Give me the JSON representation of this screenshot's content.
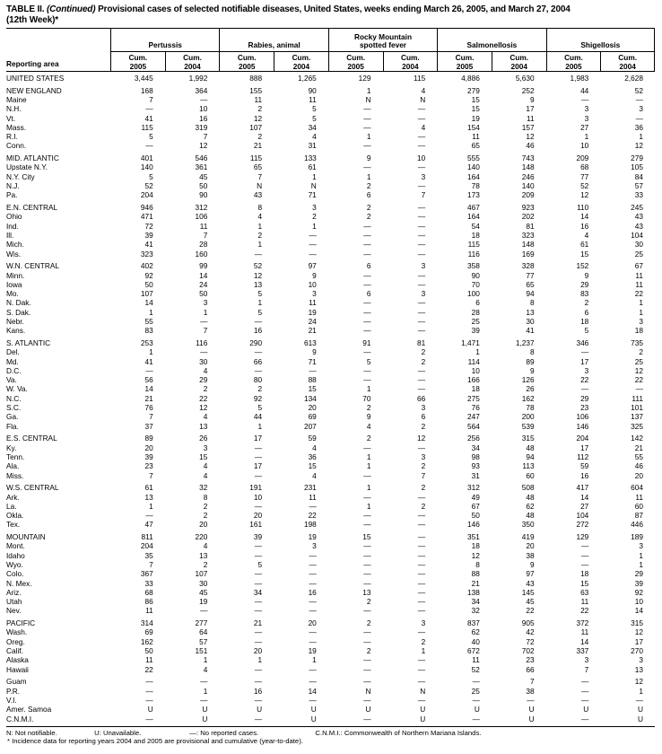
{
  "title": {
    "prefix": "TABLE II. ",
    "continued": "(Continued)",
    "rest": " Provisional cases of selected notifiable diseases, United States, weeks ending March 26, 2005, and March 27, 2004",
    "line2": "(12th Week)*"
  },
  "table": {
    "reporting_area_label": "Reporting area",
    "cum_label": "Cum.",
    "years": [
      "2005",
      "2004"
    ],
    "column_groups": [
      {
        "name": "Pertussis"
      },
      {
        "name": "Rabies, animal"
      },
      {
        "name": "Rocky Mountain\nspotted fever"
      },
      {
        "name": "Salmonellosis"
      },
      {
        "name": "Shigellosis"
      }
    ],
    "rows": [
      {
        "area": "UNITED STATES",
        "type": "us-total",
        "gap": false,
        "values": [
          "3,445",
          "1,992",
          "888",
          "1,265",
          "129",
          "115",
          "4,886",
          "5,630",
          "1,983",
          "2,628"
        ]
      },
      {
        "area": "NEW ENGLAND",
        "type": "region",
        "gap": true,
        "values": [
          "168",
          "364",
          "155",
          "90",
          "1",
          "4",
          "279",
          "252",
          "44",
          "52"
        ]
      },
      {
        "area": "Maine",
        "type": "state",
        "gap": false,
        "values": [
          "7",
          "—",
          "11",
          "11",
          "N",
          "N",
          "15",
          "9",
          "—",
          "—"
        ]
      },
      {
        "area": "N.H.",
        "type": "state",
        "gap": false,
        "values": [
          "—",
          "10",
          "2",
          "5",
          "—",
          "—",
          "15",
          "17",
          "3",
          "3"
        ]
      },
      {
        "area": "Vt.",
        "type": "state",
        "gap": false,
        "values": [
          "41",
          "16",
          "12",
          "5",
          "—",
          "—",
          "19",
          "11",
          "3",
          "—"
        ]
      },
      {
        "area": "Mass.",
        "type": "state",
        "gap": false,
        "values": [
          "115",
          "319",
          "107",
          "34",
          "—",
          "4",
          "154",
          "157",
          "27",
          "36"
        ]
      },
      {
        "area": "R.I.",
        "type": "state",
        "gap": false,
        "values": [
          "5",
          "7",
          "2",
          "4",
          "1",
          "—",
          "11",
          "12",
          "1",
          "1"
        ]
      },
      {
        "area": "Conn.",
        "type": "state",
        "gap": false,
        "values": [
          "—",
          "12",
          "21",
          "31",
          "—",
          "—",
          "65",
          "46",
          "10",
          "12"
        ]
      },
      {
        "area": "MID. ATLANTIC",
        "type": "region",
        "gap": true,
        "values": [
          "401",
          "546",
          "115",
          "133",
          "9",
          "10",
          "555",
          "743",
          "209",
          "279"
        ]
      },
      {
        "area": "Upstate N.Y.",
        "type": "state",
        "gap": false,
        "values": [
          "140",
          "361",
          "65",
          "61",
          "—",
          "—",
          "140",
          "148",
          "68",
          "105"
        ]
      },
      {
        "area": "N.Y. City",
        "type": "state",
        "gap": false,
        "values": [
          "5",
          "45",
          "7",
          "1",
          "1",
          "3",
          "164",
          "246",
          "77",
          "84"
        ]
      },
      {
        "area": "N.J.",
        "type": "state",
        "gap": false,
        "values": [
          "52",
          "50",
          "N",
          "N",
          "2",
          "—",
          "78",
          "140",
          "52",
          "57"
        ]
      },
      {
        "area": "Pa.",
        "type": "state",
        "gap": false,
        "values": [
          "204",
          "90",
          "43",
          "71",
          "6",
          "7",
          "173",
          "209",
          "12",
          "33"
        ]
      },
      {
        "area": "E.N. CENTRAL",
        "type": "region",
        "gap": true,
        "values": [
          "946",
          "312",
          "8",
          "3",
          "2",
          "—",
          "467",
          "923",
          "110",
          "245"
        ]
      },
      {
        "area": "Ohio",
        "type": "state",
        "gap": false,
        "values": [
          "471",
          "106",
          "4",
          "2",
          "2",
          "—",
          "164",
          "202",
          "14",
          "43"
        ]
      },
      {
        "area": "Ind.",
        "type": "state",
        "gap": false,
        "values": [
          "72",
          "11",
          "1",
          "1",
          "—",
          "—",
          "54",
          "81",
          "16",
          "43"
        ]
      },
      {
        "area": "Ill.",
        "type": "state",
        "gap": false,
        "values": [
          "39",
          "7",
          "2",
          "—",
          "—",
          "—",
          "18",
          "323",
          "4",
          "104"
        ]
      },
      {
        "area": "Mich.",
        "type": "state",
        "gap": false,
        "values": [
          "41",
          "28",
          "1",
          "—",
          "—",
          "—",
          "115",
          "148",
          "61",
          "30"
        ]
      },
      {
        "area": "Wis.",
        "type": "state",
        "gap": false,
        "values": [
          "323",
          "160",
          "—",
          "—",
          "—",
          "—",
          "116",
          "169",
          "15",
          "25"
        ]
      },
      {
        "area": "W.N. CENTRAL",
        "type": "region",
        "gap": true,
        "values": [
          "402",
          "99",
          "52",
          "97",
          "6",
          "3",
          "358",
          "328",
          "152",
          "67"
        ]
      },
      {
        "area": "Minn.",
        "type": "state",
        "gap": false,
        "values": [
          "92",
          "14",
          "12",
          "9",
          "—",
          "—",
          "90",
          "77",
          "9",
          "11"
        ]
      },
      {
        "area": "Iowa",
        "type": "state",
        "gap": false,
        "values": [
          "50",
          "24",
          "13",
          "10",
          "—",
          "—",
          "70",
          "65",
          "29",
          "11"
        ]
      },
      {
        "area": "Mo.",
        "type": "state",
        "gap": false,
        "values": [
          "107",
          "50",
          "5",
          "3",
          "6",
          "3",
          "100",
          "94",
          "83",
          "22"
        ]
      },
      {
        "area": "N. Dak.",
        "type": "state",
        "gap": false,
        "values": [
          "14",
          "3",
          "1",
          "11",
          "—",
          "—",
          "6",
          "8",
          "2",
          "1"
        ]
      },
      {
        "area": "S. Dak.",
        "type": "state",
        "gap": false,
        "values": [
          "1",
          "1",
          "5",
          "19",
          "—",
          "—",
          "28",
          "13",
          "6",
          "1"
        ]
      },
      {
        "area": "Nebr.",
        "type": "state",
        "gap": false,
        "values": [
          "55",
          "—",
          "—",
          "24",
          "—",
          "—",
          "25",
          "30",
          "18",
          "3"
        ]
      },
      {
        "area": "Kans.",
        "type": "state",
        "gap": false,
        "values": [
          "83",
          "7",
          "16",
          "21",
          "—",
          "—",
          "39",
          "41",
          "5",
          "18"
        ]
      },
      {
        "area": "S. ATLANTIC",
        "type": "region",
        "gap": true,
        "values": [
          "253",
          "116",
          "290",
          "613",
          "91",
          "81",
          "1,471",
          "1,237",
          "346",
          "735"
        ]
      },
      {
        "area": "Del.",
        "type": "state",
        "gap": false,
        "values": [
          "1",
          "—",
          "—",
          "9",
          "—",
          "2",
          "1",
          "8",
          "—",
          "2"
        ]
      },
      {
        "area": "Md.",
        "type": "state",
        "gap": false,
        "values": [
          "41",
          "30",
          "66",
          "71",
          "5",
          "2",
          "114",
          "89",
          "17",
          "25"
        ]
      },
      {
        "area": "D.C.",
        "type": "state",
        "gap": false,
        "values": [
          "—",
          "4",
          "—",
          "—",
          "—",
          "—",
          "10",
          "9",
          "3",
          "12"
        ]
      },
      {
        "area": "Va.",
        "type": "state",
        "gap": false,
        "values": [
          "56",
          "29",
          "80",
          "88",
          "—",
          "—",
          "166",
          "126",
          "22",
          "22"
        ]
      },
      {
        "area": "W. Va.",
        "type": "state",
        "gap": false,
        "values": [
          "14",
          "2",
          "2",
          "15",
          "1",
          "—",
          "18",
          "26",
          "—",
          "—"
        ]
      },
      {
        "area": "N.C.",
        "type": "state",
        "gap": false,
        "values": [
          "21",
          "22",
          "92",
          "134",
          "70",
          "66",
          "275",
          "162",
          "29",
          "111"
        ]
      },
      {
        "area": "S.C.",
        "type": "state",
        "gap": false,
        "values": [
          "76",
          "12",
          "5",
          "20",
          "2",
          "3",
          "76",
          "78",
          "23",
          "101"
        ]
      },
      {
        "area": "Ga.",
        "type": "state",
        "gap": false,
        "values": [
          "7",
          "4",
          "44",
          "69",
          "9",
          "6",
          "247",
          "200",
          "106",
          "137"
        ]
      },
      {
        "area": "Fla.",
        "type": "state",
        "gap": false,
        "values": [
          "37",
          "13",
          "1",
          "207",
          "4",
          "2",
          "564",
          "539",
          "146",
          "325"
        ]
      },
      {
        "area": "E.S. CENTRAL",
        "type": "region",
        "gap": true,
        "values": [
          "89",
          "26",
          "17",
          "59",
          "2",
          "12",
          "256",
          "315",
          "204",
          "142"
        ]
      },
      {
        "area": "Ky.",
        "type": "state",
        "gap": false,
        "values": [
          "20",
          "3",
          "—",
          "4",
          "—",
          "—",
          "34",
          "48",
          "17",
          "21"
        ]
      },
      {
        "area": "Tenn.",
        "type": "state",
        "gap": false,
        "values": [
          "39",
          "15",
          "—",
          "36",
          "1",
          "3",
          "98",
          "94",
          "112",
          "55"
        ]
      },
      {
        "area": "Ala.",
        "type": "state",
        "gap": false,
        "values": [
          "23",
          "4",
          "17",
          "15",
          "1",
          "2",
          "93",
          "113",
          "59",
          "46"
        ]
      },
      {
        "area": "Miss.",
        "type": "state",
        "gap": false,
        "values": [
          "7",
          "4",
          "—",
          "4",
          "—",
          "7",
          "31",
          "60",
          "16",
          "20"
        ]
      },
      {
        "area": "W.S. CENTRAL",
        "type": "region",
        "gap": true,
        "values": [
          "61",
          "32",
          "191",
          "231",
          "1",
          "2",
          "312",
          "508",
          "417",
          "604"
        ]
      },
      {
        "area": "Ark.",
        "type": "state",
        "gap": false,
        "values": [
          "13",
          "8",
          "10",
          "11",
          "—",
          "—",
          "49",
          "48",
          "14",
          "11"
        ]
      },
      {
        "area": "La.",
        "type": "state",
        "gap": false,
        "values": [
          "1",
          "2",
          "—",
          "—",
          "1",
          "2",
          "67",
          "62",
          "27",
          "60"
        ]
      },
      {
        "area": "Okla.",
        "type": "state",
        "gap": false,
        "values": [
          "—",
          "2",
          "20",
          "22",
          "—",
          "—",
          "50",
          "48",
          "104",
          "87"
        ]
      },
      {
        "area": "Tex.",
        "type": "state",
        "gap": false,
        "values": [
          "47",
          "20",
          "161",
          "198",
          "—",
          "—",
          "146",
          "350",
          "272",
          "446"
        ]
      },
      {
        "area": "MOUNTAIN",
        "type": "region",
        "gap": true,
        "values": [
          "811",
          "220",
          "39",
          "19",
          "15",
          "—",
          "351",
          "419",
          "129",
          "189"
        ]
      },
      {
        "area": "Mont.",
        "type": "state",
        "gap": false,
        "values": [
          "204",
          "4",
          "—",
          "3",
          "—",
          "—",
          "18",
          "20",
          "—",
          "3"
        ]
      },
      {
        "area": "Idaho",
        "type": "state",
        "gap": false,
        "values": [
          "35",
          "13",
          "—",
          "—",
          "—",
          "—",
          "12",
          "38",
          "—",
          "1"
        ]
      },
      {
        "area": "Wyo.",
        "type": "state",
        "gap": false,
        "values": [
          "7",
          "2",
          "5",
          "—",
          "—",
          "—",
          "8",
          "9",
          "—",
          "1"
        ]
      },
      {
        "area": "Colo.",
        "type": "state",
        "gap": false,
        "values": [
          "367",
          "107",
          "—",
          "—",
          "—",
          "—",
          "88",
          "97",
          "18",
          "29"
        ]
      },
      {
        "area": "N. Mex.",
        "type": "state",
        "gap": false,
        "values": [
          "33",
          "30",
          "—",
          "—",
          "—",
          "—",
          "21",
          "43",
          "15",
          "39"
        ]
      },
      {
        "area": "Ariz.",
        "type": "state",
        "gap": false,
        "values": [
          "68",
          "45",
          "34",
          "16",
          "13",
          "—",
          "138",
          "145",
          "63",
          "92"
        ]
      },
      {
        "area": "Utah",
        "type": "state",
        "gap": false,
        "values": [
          "86",
          "19",
          "—",
          "—",
          "2",
          "—",
          "34",
          "45",
          "11",
          "10"
        ]
      },
      {
        "area": "Nev.",
        "type": "state",
        "gap": false,
        "values": [
          "11",
          "—",
          "—",
          "—",
          "—",
          "—",
          "32",
          "22",
          "22",
          "14"
        ]
      },
      {
        "area": "PACIFIC",
        "type": "region",
        "gap": true,
        "values": [
          "314",
          "277",
          "21",
          "20",
          "2",
          "3",
          "837",
          "905",
          "372",
          "315"
        ]
      },
      {
        "area": "Wash.",
        "type": "state",
        "gap": false,
        "values": [
          "69",
          "64",
          "—",
          "—",
          "—",
          "—",
          "62",
          "42",
          "11",
          "12"
        ]
      },
      {
        "area": "Oreg.",
        "type": "state",
        "gap": false,
        "values": [
          "162",
          "57",
          "—",
          "—",
          "—",
          "2",
          "40",
          "72",
          "14",
          "17"
        ]
      },
      {
        "area": "Calif.",
        "type": "state",
        "gap": false,
        "values": [
          "50",
          "151",
          "20",
          "19",
          "2",
          "1",
          "672",
          "702",
          "337",
          "270"
        ]
      },
      {
        "area": "Alaska",
        "type": "state",
        "gap": false,
        "values": [
          "11",
          "1",
          "1",
          "1",
          "—",
          "—",
          "11",
          "23",
          "3",
          "3"
        ]
      },
      {
        "area": "Hawaii",
        "type": "state",
        "gap": false,
        "values": [
          "22",
          "4",
          "—",
          "—",
          "—",
          "—",
          "52",
          "66",
          "7",
          "13"
        ]
      },
      {
        "area": "Guam",
        "type": "territory",
        "gap": true,
        "values": [
          "—",
          "—",
          "—",
          "—",
          "—",
          "—",
          "—",
          "7",
          "—",
          "12"
        ]
      },
      {
        "area": "P.R.",
        "type": "territory",
        "gap": false,
        "values": [
          "—",
          "1",
          "16",
          "14",
          "N",
          "N",
          "25",
          "38",
          "—",
          "1"
        ]
      },
      {
        "area": "V.I.",
        "type": "territory",
        "gap": false,
        "values": [
          "—",
          "—",
          "—",
          "—",
          "—",
          "—",
          "—",
          "—",
          "—",
          "—"
        ]
      },
      {
        "area": "Amer. Samoa",
        "type": "territory",
        "gap": false,
        "values": [
          "U",
          "U",
          "U",
          "U",
          "U",
          "U",
          "U",
          "U",
          "U",
          "U"
        ]
      },
      {
        "area": "C.N.M.I.",
        "type": "territory",
        "gap": false,
        "values": [
          "—",
          "U",
          "—",
          "U",
          "—",
          "U",
          "—",
          "U",
          "—",
          "U"
        ]
      }
    ]
  },
  "footnotes": {
    "legend": [
      "N: Not notifiable.",
      "U: Unavailable.",
      "—: No reported cases.",
      "C.N.M.I.: Commonwealth of Northern Mariana Islands."
    ],
    "note": "* Incidence data for reporting years 2004 and 2005 are provisional and cumulative (year-to-date)."
  }
}
